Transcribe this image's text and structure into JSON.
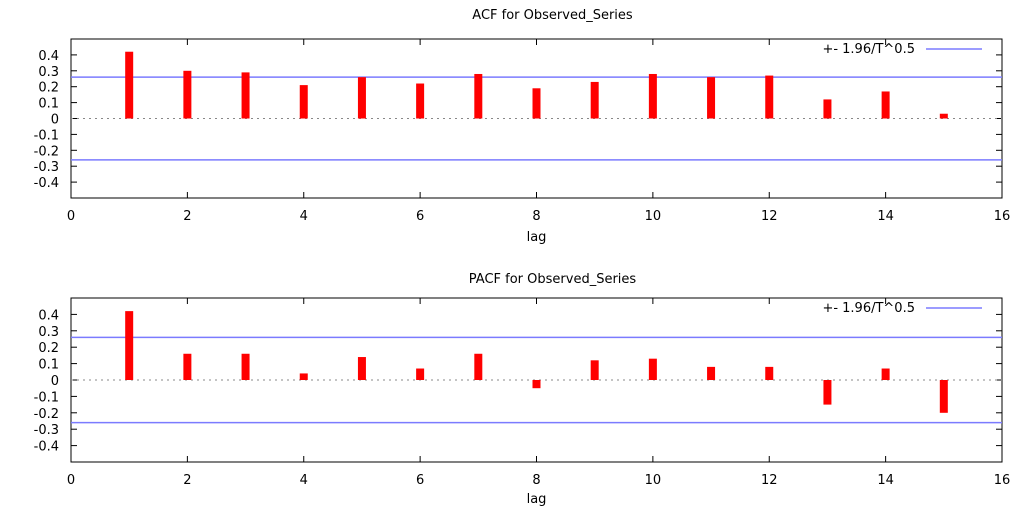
{
  "chart_data": [
    {
      "type": "bar",
      "title": "ACF for Observed_Series",
      "xlabel": "lag",
      "ylabel": "",
      "xlim": [
        0,
        16
      ],
      "ylim": [
        -0.5,
        0.5
      ],
      "xticks": [
        0,
        2,
        4,
        6,
        8,
        10,
        12,
        14,
        16
      ],
      "yticks": [
        0.4,
        0.3,
        0.2,
        0.1,
        0,
        -0.1,
        -0.2,
        -0.3,
        -0.4
      ],
      "x": [
        1,
        2,
        3,
        4,
        5,
        6,
        7,
        8,
        9,
        10,
        11,
        12,
        13,
        14,
        15
      ],
      "series": [
        {
          "values": [
            0.42,
            0.3,
            0.29,
            0.21,
            0.26,
            0.22,
            0.28,
            0.19,
            0.23,
            0.28,
            0.26,
            0.27,
            0.12,
            0.17,
            0.03
          ],
          "color": "#ff0000"
        }
      ],
      "bound": {
        "label": "+- 1.96/T^0.5",
        "value": 0.26,
        "color": "#7b7bff"
      },
      "zero_line": "dotted",
      "legend": "top-right"
    },
    {
      "type": "bar",
      "title": "PACF for Observed_Series",
      "xlabel": "lag",
      "ylabel": "",
      "xlim": [
        0,
        16
      ],
      "ylim": [
        -0.5,
        0.5
      ],
      "xticks": [
        0,
        2,
        4,
        6,
        8,
        10,
        12,
        14,
        16
      ],
      "yticks": [
        0.4,
        0.3,
        0.2,
        0.1,
        0,
        -0.1,
        -0.2,
        -0.3,
        -0.4
      ],
      "x": [
        1,
        2,
        3,
        4,
        5,
        6,
        7,
        8,
        9,
        10,
        11,
        12,
        13,
        14,
        15
      ],
      "series": [
        {
          "values": [
            0.42,
            0.16,
            0.16,
            0.04,
            0.14,
            0.07,
            0.16,
            -0.05,
            0.12,
            0.13,
            0.08,
            0.08,
            -0.15,
            0.07,
            -0.2
          ],
          "color": "#ff0000"
        }
      ],
      "bound": {
        "label": "+- 1.96/T^0.5",
        "value": 0.26,
        "color": "#7b7bff"
      },
      "zero_line": "dotted",
      "legend": "top-right"
    }
  ]
}
